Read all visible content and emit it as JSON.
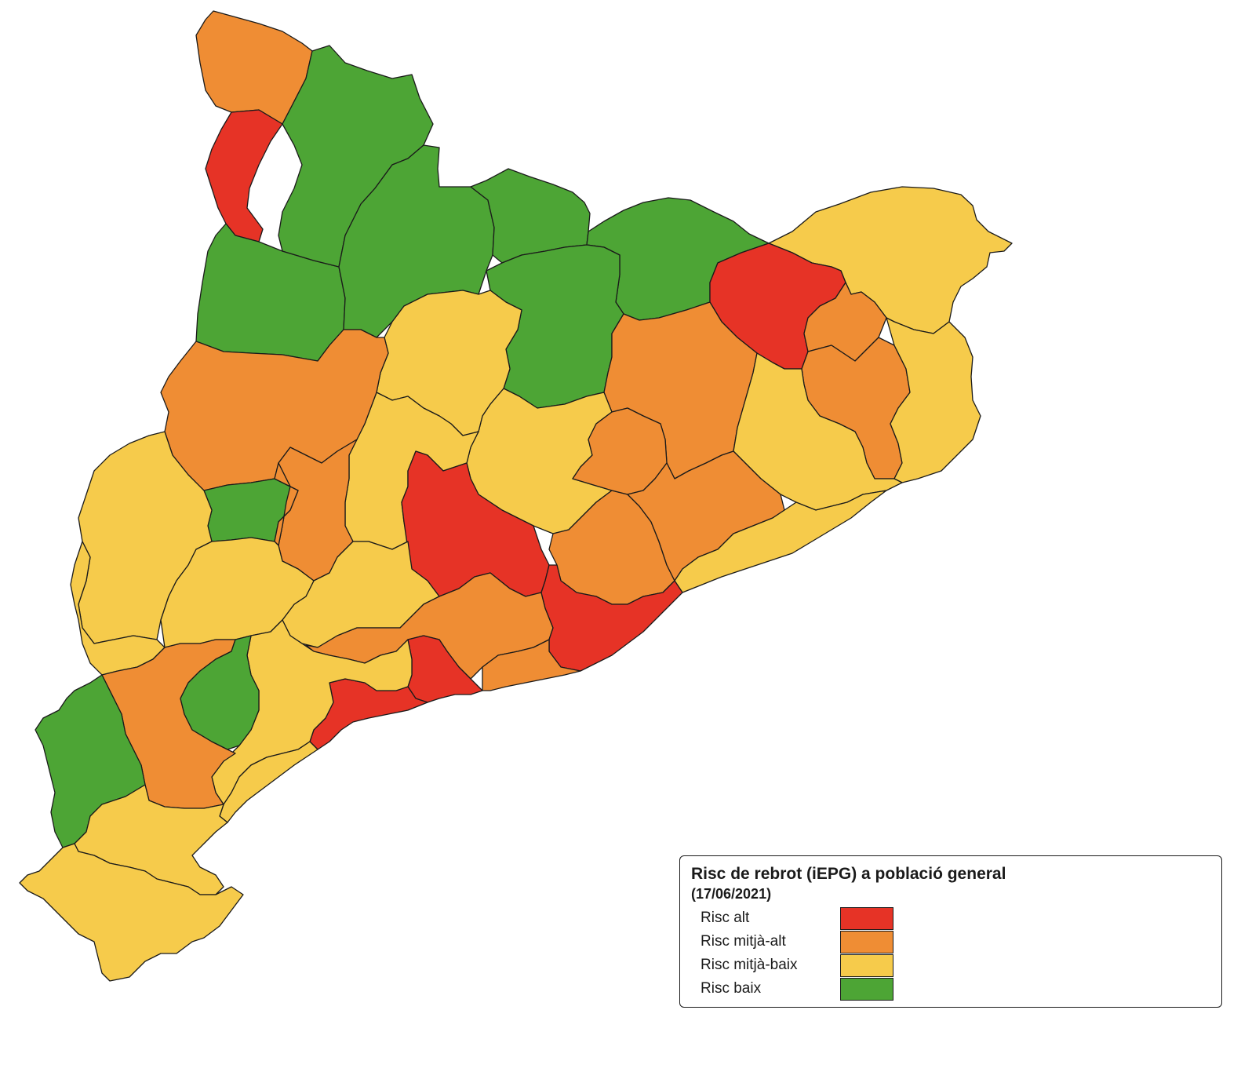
{
  "legend": {
    "title": "Risc de rebrot (iEPG) a població general",
    "subtitle": "(17/06/2021)",
    "items": [
      {
        "label": "Risc alt",
        "level": "high",
        "color": "#E63326"
      },
      {
        "label": "Risc mitjà-alt",
        "level": "medium-high",
        "color": "#EF8D34"
      },
      {
        "label": "Risc mitjà-baix",
        "level": "medium-low",
        "color": "#F6CB4B"
      },
      {
        "label": "Risc baix",
        "level": "low",
        "color": "#4DA535"
      }
    ]
  },
  "regions": [
    {
      "level": "medium-high"
    },
    {
      "level": "high"
    },
    {
      "level": "low"
    },
    {
      "level": "low"
    },
    {
      "level": "low"
    },
    {
      "level": "low"
    },
    {
      "level": "low"
    },
    {
      "level": "low"
    },
    {
      "level": "medium-low"
    },
    {
      "level": "high"
    },
    {
      "level": "medium-high"
    },
    {
      "level": "medium-high"
    },
    {
      "level": "medium-low"
    },
    {
      "level": "medium-high"
    },
    {
      "level": "medium-low"
    },
    {
      "level": "medium-low"
    },
    {
      "level": "medium-low"
    },
    {
      "level": "medium-low"
    },
    {
      "level": "medium-high"
    },
    {
      "level": "medium-high"
    },
    {
      "level": "low"
    },
    {
      "level": "medium-high"
    },
    {
      "level": "medium-low"
    },
    {
      "level": "high"
    },
    {
      "level": "medium-high"
    },
    {
      "level": "medium-high"
    },
    {
      "level": "medium-high"
    },
    {
      "level": "medium-low"
    },
    {
      "level": "medium-low"
    },
    {
      "level": "medium-low"
    },
    {
      "level": "medium-low"
    },
    {
      "level": "medium-high"
    },
    {
      "level": "high"
    },
    {
      "level": "high"
    },
    {
      "level": "high"
    },
    {
      "level": "medium-high"
    },
    {
      "level": "medium-low"
    },
    {
      "level": "medium-high"
    },
    {
      "level": "low"
    },
    {
      "level": "low"
    },
    {
      "level": "medium-low"
    },
    {
      "level": "medium-low"
    },
    {
      "level": "medium-low"
    }
  ]
}
